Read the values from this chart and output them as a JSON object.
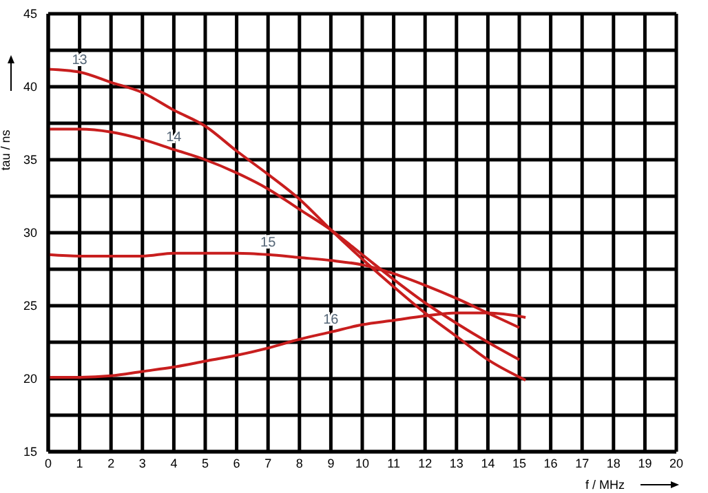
{
  "chart_data": {
    "type": "line",
    "xlabel": "f / MHz",
    "ylabel": "tau / ns",
    "xlim": [
      0,
      20
    ],
    "xticks": [
      0,
      1,
      2,
      3,
      4,
      5,
      6,
      7,
      8,
      9,
      10,
      11,
      12,
      13,
      14,
      15,
      16,
      17,
      18,
      19,
      20
    ],
    "ylim": [
      15,
      45
    ],
    "yticks": [
      15,
      {
        "value": 17.5,
        "label": null
      },
      20,
      {
        "value": 22.5,
        "label": null
      },
      25,
      {
        "value": 27.5,
        "label": null
      },
      30,
      {
        "value": 32.5,
        "label": null
      },
      35,
      {
        "value": 37.5,
        "label": null
      },
      40,
      {
        "value": 42.5,
        "label": null
      },
      45
    ],
    "grid": true,
    "marker": "none",
    "line_style": "solid",
    "series": [
      {
        "name": "13",
        "color": "#c81e1e",
        "x": [
          0,
          1,
          2,
          3,
          4,
          5,
          6,
          7,
          8,
          9,
          10,
          11,
          12,
          13,
          14,
          15.2
        ],
        "values": [
          41.2,
          41,
          40.3,
          39.6,
          38.4,
          37.3,
          35.6,
          34,
          32.3,
          30.2,
          28.2,
          26.3,
          24.5,
          22.9,
          21.3,
          19.9
        ]
      },
      {
        "name": "14",
        "color": "#c81e1e",
        "x": [
          0,
          1,
          2,
          3,
          4,
          5,
          6,
          7,
          8,
          9,
          10,
          11,
          12,
          13,
          14,
          15
        ],
        "values": [
          37.1,
          37.1,
          36.9,
          36.4,
          35.7,
          35,
          34.1,
          33,
          31.6,
          30.2,
          28.5,
          26.8,
          25.2,
          23.8,
          22.5,
          21.3
        ]
      },
      {
        "name": "15",
        "color": "#c81e1e",
        "x": [
          0,
          1,
          2,
          3,
          4,
          5,
          6,
          7,
          8,
          9,
          10,
          11,
          12,
          13,
          14,
          15
        ],
        "values": [
          28.5,
          28.4,
          28.4,
          28.4,
          28.6,
          28.6,
          28.6,
          28.5,
          28.3,
          28.1,
          27.8,
          27.2,
          26.4,
          25.5,
          24.5,
          23.5
        ]
      },
      {
        "name": "16",
        "color": "#c81e1e",
        "x": [
          0,
          1,
          2,
          3,
          4,
          5,
          6,
          7,
          8,
          9,
          10,
          11,
          12,
          13,
          14,
          15.2
        ],
        "values": [
          20.1,
          20.1,
          20.2,
          20.5,
          20.8,
          21.2,
          21.6,
          22.1,
          22.7,
          23.2,
          23.7,
          24,
          24.3,
          24.5,
          24.5,
          24.2
        ]
      }
    ]
  }
}
